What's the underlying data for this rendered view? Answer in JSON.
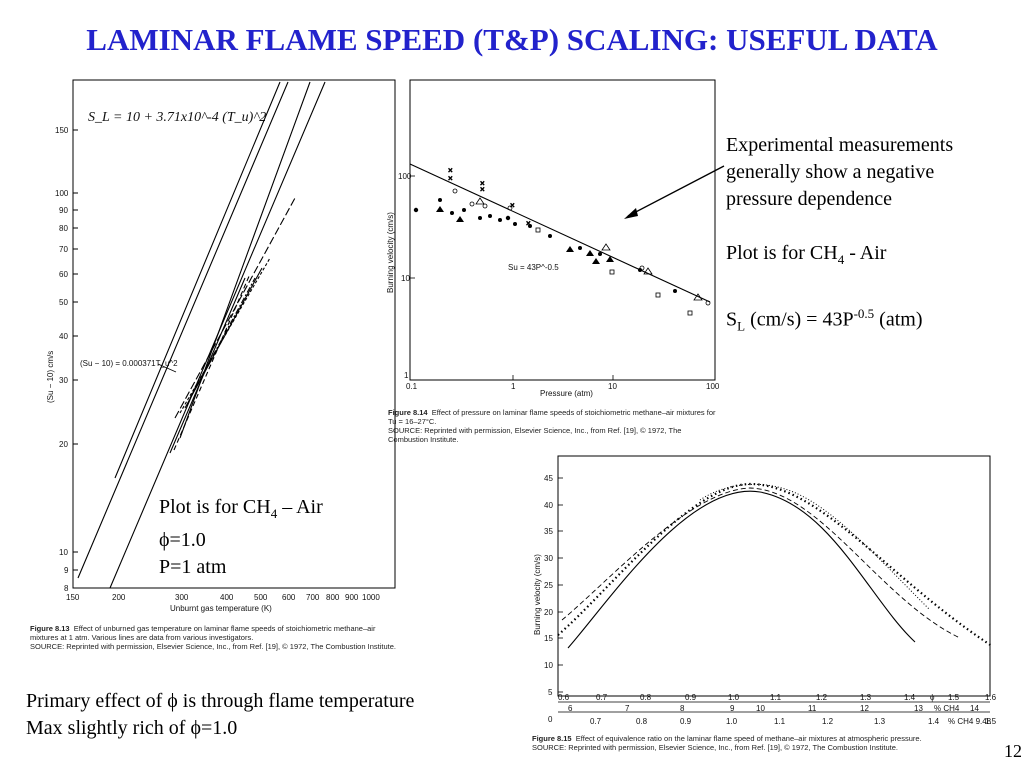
{
  "slide": {
    "title": "LAMINAR FLAME SPEED (T&P) SCALING: USEFUL DATA",
    "page_number": "12"
  },
  "left_figure": {
    "formula": "S_L = 10 + 3.71x10^-4 (T_u)^2",
    "annotation": "(Su − 10) = 0.000371T_u^2",
    "ylabel": "(Su − 10) cm/s",
    "xlabel": "Unburnt gas temperature (K)",
    "yticks": [
      "150",
      "100",
      "90",
      "80",
      "70",
      "60",
      "50",
      "40",
      "30",
      "20",
      "10",
      "9",
      "8"
    ],
    "xticks": [
      "150",
      "200",
      "300",
      "400",
      "500",
      "600",
      "700",
      "800",
      "900",
      "1000"
    ],
    "caption_title": "Figure 8.13",
    "caption_text": "Effect of unburned gas temperature on laminar flame speeds of stoichiometric methane–air mixtures at 1 atm. Various lines are data from various investigators.",
    "caption_source": "SOURCE: Reprinted with permission, Elsevier Science, Inc., from Ref. [19], © 1972, The Combustion Institute.",
    "notes": [
      "Plot is for CH",
      "4",
      " – Air",
      "ϕ=1.0",
      "P=1 atm"
    ]
  },
  "pressure_figure": {
    "ylabel": "Burning velocity (cm/s)",
    "xlabel": "Pressure (atm)",
    "yticks": [
      "100",
      "10",
      "1"
    ],
    "xticks": [
      "0.1",
      "1",
      "10",
      "100"
    ],
    "fit_label": "Su = 43P^-0.5",
    "caption_title": "Figure 8.14",
    "caption_text": "Effect of pressure on laminar flame speeds of stoichiometric methane–air mixtures for Tu = 16–27°C.",
    "caption_source": "SOURCE: Reprinted with permission, Elsevier Science, Inc., from Ref. [19], © 1972, The Combustion Institute."
  },
  "notes_right": {
    "line1": "Experimental measurements",
    "line2": "generally show a negative",
    "line3": "pressure dependence",
    "plot_for": "Plot is for CH",
    "plot_for_sub": "4",
    "plot_for_tail": " - Air",
    "sl": "S",
    "sl_sub": "L",
    "sl_mid": " (cm/s) = 43P",
    "sl_sup": "-0.5",
    "sl_tail": " (atm)"
  },
  "phi_figure": {
    "ylabel": "Burning velocity (cm/s)",
    "yticks": [
      "45",
      "40",
      "35",
      "30",
      "25",
      "20",
      "15",
      "10",
      "5",
      "0"
    ],
    "phi_ticks": [
      "0.6",
      "0.7",
      "0.8",
      "0.9",
      "1.0",
      "1.1",
      "1.2",
      "1.3",
      "1.4",
      "ϕ",
      "1.5",
      "1.6"
    ],
    "ch4_ticks": [
      "6",
      "7",
      "8",
      "9",
      "10",
      "11",
      "12",
      "13",
      "% CH4",
      "14"
    ],
    "phi_ticks2": [
      "0.7",
      "0.8",
      "0.9",
      "1.0",
      "1.1",
      "1.2",
      "1.3",
      "1.4",
      "% CH4 9.48",
      "1.5"
    ],
    "caption_title": "Figure 8.15",
    "caption_text": "Effect of equivalence ratio on the laminar flame speed of methane–air mixtures at atmospheric pressure.",
    "caption_source": "SOURCE: Reprinted with permission, Elsevier Science, Inc., from Ref. [19], © 1972, The Combustion Institute."
  },
  "bottom_text": {
    "line1_a": "Primary effect of ",
    "line1_b": "ϕ",
    "line1_c": " is through flame temperature",
    "line2_a": "Max slightly rich of ",
    "line2_b": "ϕ",
    "line2_c": "=1.0"
  }
}
